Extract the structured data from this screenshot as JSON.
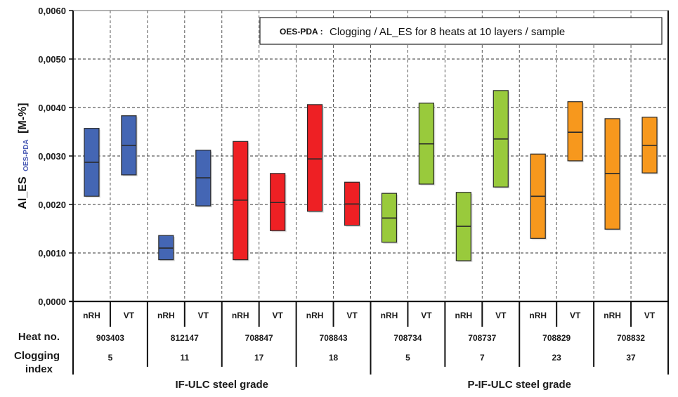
{
  "chart_data": {
    "type": "bar",
    "subtype": "floating-range-with-median",
    "title": "Clogging / AL_ES for 8 heats at 10 layers / sample",
    "title_prefix": "OES-PDA :",
    "legend_position": "top-right",
    "ylabel": "Al_ES",
    "ylabel_subscript": "OES-PDA",
    "ylabel_unit": "[M-%]",
    "ylim": [
      0,
      0.006
    ],
    "yticks": [
      "0,0000",
      "0,0010",
      "0,0020",
      "0,0030",
      "0,0040",
      "0,0050",
      "0,0060"
    ],
    "ytick_values": [
      0,
      0.001,
      0.002,
      0.003,
      0.004,
      0.005,
      0.006
    ],
    "grid": true,
    "row_labels": {
      "heat": "Heat no.",
      "clogging_line1": "Clogging",
      "clogging_line2": "index"
    },
    "process_labels": [
      "nRH",
      "VT"
    ],
    "groups": [
      {
        "label": "IF-ULC steel grade",
        "heats": [
          0,
          1,
          2,
          3
        ]
      },
      {
        "label": "P-IF-ULC steel grade",
        "heats": [
          4,
          5,
          6,
          7
        ]
      }
    ],
    "heats": [
      {
        "heat_no": "903403",
        "clogging_index": "5",
        "color": "#4466B4",
        "nRH": {
          "min": 0.00217,
          "median": 0.00287,
          "max": 0.00357
        },
        "VT": {
          "min": 0.00261,
          "median": 0.00322,
          "max": 0.00383
        }
      },
      {
        "heat_no": "812147",
        "clogging_index": "11",
        "color": "#4466B4",
        "nRH": {
          "min": 0.00086,
          "median": 0.0011,
          "max": 0.00136
        },
        "VT": {
          "min": 0.00197,
          "median": 0.00255,
          "max": 0.00312
        }
      },
      {
        "heat_no": "708847",
        "clogging_index": "17",
        "color": "#EE2024",
        "nRH": {
          "min": 0.00086,
          "median": 0.00209,
          "max": 0.0033
        },
        "VT": {
          "min": 0.00146,
          "median": 0.00204,
          "max": 0.00264
        }
      },
      {
        "heat_no": "708843",
        "clogging_index": "18",
        "color": "#EE2024",
        "nRH": {
          "min": 0.00186,
          "median": 0.00294,
          "max": 0.00406
        },
        "VT": {
          "min": 0.00157,
          "median": 0.00201,
          "max": 0.00246
        }
      },
      {
        "heat_no": "708734",
        "clogging_index": "5",
        "color": "#99CA3C",
        "nRH": {
          "min": 0.00122,
          "median": 0.00172,
          "max": 0.00223
        },
        "VT": {
          "min": 0.00242,
          "median": 0.00325,
          "max": 0.00409
        }
      },
      {
        "heat_no": "708737",
        "clogging_index": "7",
        "color": "#99CA3C",
        "nRH": {
          "min": 0.00084,
          "median": 0.00155,
          "max": 0.00225
        },
        "VT": {
          "min": 0.00236,
          "median": 0.00335,
          "max": 0.00435
        }
      },
      {
        "heat_no": "708829",
        "clogging_index": "23",
        "color": "#F7981D",
        "nRH": {
          "min": 0.0013,
          "median": 0.00217,
          "max": 0.00304
        },
        "VT": {
          "min": 0.0029,
          "median": 0.00349,
          "max": 0.00412
        }
      },
      {
        "heat_no": "708832",
        "clogging_index": "37",
        "color": "#F7981D",
        "nRH": {
          "min": 0.00149,
          "median": 0.00264,
          "max": 0.00377
        },
        "VT": {
          "min": 0.00265,
          "median": 0.00322,
          "max": 0.0038
        }
      }
    ]
  }
}
